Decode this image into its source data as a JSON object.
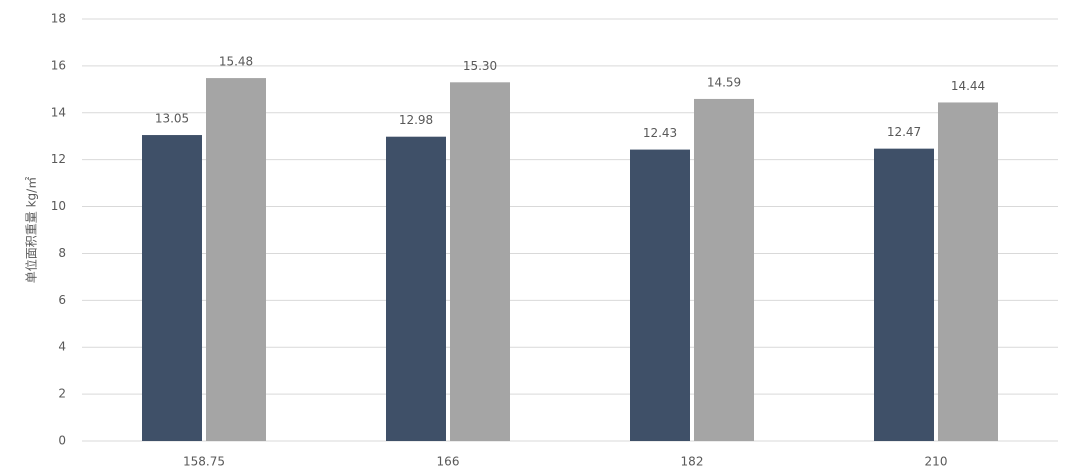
{
  "chart_data": {
    "type": "bar",
    "y_axis_label": "单位面积重量 kg/㎡",
    "categories": [
      "158.75",
      "166",
      "182",
      "210"
    ],
    "series": [
      {
        "color": "#3f5068",
        "values": [
          13.05,
          12.98,
          12.43,
          12.47
        ],
        "value_labels": [
          "13.05",
          "12.98",
          "12.43",
          "12.47"
        ]
      },
      {
        "color": "#a5a5a5",
        "values": [
          15.48,
          15.3,
          14.59,
          14.44
        ],
        "value_labels": [
          "15.48",
          "15.30",
          "14.59",
          "14.44"
        ]
      }
    ],
    "ylim": [
      0,
      18
    ],
    "yticks": [
      0,
      2,
      4,
      6,
      8,
      10,
      12,
      14,
      16,
      18
    ],
    "grid": true
  }
}
